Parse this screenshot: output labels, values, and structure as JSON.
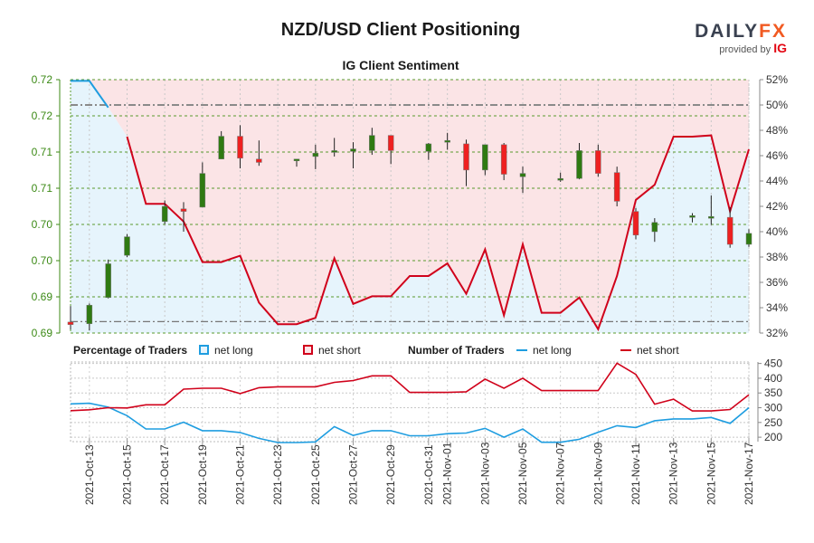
{
  "header": {
    "title": "NZD/USD Client Positioning",
    "subtitle": "IG Client Sentiment",
    "logo_main_left": "DAILY",
    "logo_main_right": "FX",
    "logo_sub": "provided by",
    "logo_ig": "IG"
  },
  "legend": {
    "percentage_title": "Percentage of Traders",
    "pct_long": "net long",
    "pct_short": "net short",
    "number_title": "Number of Traders",
    "num_long": "net long",
    "num_short": "net short"
  },
  "colors": {
    "net_long": "#1e9de0",
    "net_short": "#d0021b",
    "long_fill": "#e6f4fc",
    "short_fill": "#fbe4e6",
    "bull_candle": "#2f7a12",
    "bear_candle": "#ee2020",
    "price_axis": "#3c8a16",
    "pct_axis": "#333333"
  },
  "chart_data": [
    {
      "type": "line",
      "title": "IG Client Sentiment",
      "description": "Percentage of traders net long (boundary between net long area below and net short area above), overlaid with NZD/USD daily candles",
      "x": [
        "2021-10-12",
        "2021-10-13",
        "2021-10-14",
        "2021-10-15",
        "2021-10-16",
        "2021-10-17",
        "2021-10-18",
        "2021-10-19",
        "2021-10-20",
        "2021-10-21",
        "2021-10-22",
        "2021-10-23",
        "2021-10-24",
        "2021-10-25",
        "2021-10-26",
        "2021-10-27",
        "2021-10-28",
        "2021-10-29",
        "2021-10-30",
        "2021-10-31",
        "2021-11-01",
        "2021-11-02",
        "2021-11-03",
        "2021-11-04",
        "2021-11-05",
        "2021-11-06",
        "2021-11-07",
        "2021-11-08",
        "2021-11-09",
        "2021-11-10",
        "2021-11-11",
        "2021-11-12",
        "2021-11-13",
        "2021-11-14",
        "2021-11-15",
        "2021-11-16",
        "2021-11-17"
      ],
      "series": [
        {
          "name": "net long %",
          "values": [
            51.9,
            51.9,
            49.8,
            47.5,
            42.2,
            42.2,
            40.8,
            37.6,
            37.6,
            38.1,
            34.4,
            32.7,
            32.7,
            33.2,
            37.9,
            34.3,
            34.9,
            34.9,
            36.5,
            36.5,
            37.5,
            35.1,
            38.6,
            33.4,
            39.0,
            33.6,
            33.6,
            34.8,
            32.3,
            36.5,
            42.5,
            43.7,
            47.5,
            47.5,
            47.6,
            41.6,
            46.5
          ]
        }
      ],
      "reference_lines": {
        "upper_dashdot_pct": 50,
        "lower_dashdot_pct": 32.9
      },
      "right_axis": {
        "label": "",
        "ticks": [
          "32%",
          "34%",
          "36%",
          "38%",
          "40%",
          "42%",
          "44%",
          "46%",
          "48%",
          "50%",
          "52%"
        ],
        "ylim": [
          32,
          52
        ]
      },
      "left_axis": {
        "label": "",
        "ticks": [
          "0.69",
          "0.69",
          "0.70",
          "0.70",
          "0.71",
          "0.71",
          "0.72",
          "0.72"
        ],
        "ylim": [
          0.69,
          0.72
        ]
      },
      "candles": [
        {
          "date": "2021-10-12",
          "open": 0.6913,
          "close": 0.691,
          "high": 0.6932,
          "low": 0.6904
        },
        {
          "date": "2021-10-13",
          "open": 0.6911,
          "close": 0.6933,
          "high": 0.6935,
          "low": 0.6903
        },
        {
          "date": "2021-10-14",
          "open": 0.6942,
          "close": 0.6982,
          "high": 0.6987,
          "low": 0.6941
        },
        {
          "date": "2021-10-15",
          "open": 0.6992,
          "close": 0.7014,
          "high": 0.7017,
          "low": 0.699
        },
        {
          "date": "2021-10-17",
          "open": 0.7032,
          "close": 0.705,
          "high": 0.7057,
          "low": 0.7029
        },
        {
          "date": "2021-10-18",
          "open": 0.7047,
          "close": 0.7044,
          "high": 0.7055,
          "low": 0.702
        },
        {
          "date": "2021-10-19",
          "open": 0.7049,
          "close": 0.7089,
          "high": 0.7102,
          "low": 0.7049
        },
        {
          "date": "2021-10-20",
          "open": 0.7106,
          "close": 0.7133,
          "high": 0.7139,
          "low": 0.7106
        },
        {
          "date": "2021-10-21",
          "open": 0.7133,
          "close": 0.7107,
          "high": 0.7146,
          "low": 0.7095
        },
        {
          "date": "2021-10-22",
          "open": 0.7106,
          "close": 0.7102,
          "high": 0.7128,
          "low": 0.7098
        },
        {
          "date": "2021-10-24",
          "open": 0.7105,
          "close": 0.7106,
          "high": 0.7106,
          "low": 0.7097
        },
        {
          "date": "2021-10-25",
          "open": 0.7109,
          "close": 0.7113,
          "high": 0.7123,
          "low": 0.7094
        },
        {
          "date": "2021-10-26",
          "open": 0.7114,
          "close": 0.7116,
          "high": 0.7131,
          "low": 0.7109
        },
        {
          "date": "2021-10-27",
          "open": 0.7115,
          "close": 0.7118,
          "high": 0.7126,
          "low": 0.7095
        },
        {
          "date": "2021-10-28",
          "open": 0.7116,
          "close": 0.7134,
          "high": 0.7143,
          "low": 0.7111
        },
        {
          "date": "2021-10-29",
          "open": 0.7134,
          "close": 0.7116,
          "high": 0.7134,
          "low": 0.71
        },
        {
          "date": "2021-10-31",
          "open": 0.7115,
          "close": 0.7124,
          "high": 0.7125,
          "low": 0.7105
        },
        {
          "date": "2021-11-01",
          "open": 0.7126,
          "close": 0.7128,
          "high": 0.7137,
          "low": 0.7117
        },
        {
          "date": "2021-11-02",
          "open": 0.7124,
          "close": 0.7093,
          "high": 0.7129,
          "low": 0.7074
        },
        {
          "date": "2021-11-03",
          "open": 0.7093,
          "close": 0.7123,
          "high": 0.7123,
          "low": 0.7087
        },
        {
          "date": "2021-11-04",
          "open": 0.7123,
          "close": 0.7088,
          "high": 0.7125,
          "low": 0.7081
        },
        {
          "date": "2021-11-05",
          "open": 0.7085,
          "close": 0.7089,
          "high": 0.7097,
          "low": 0.7066
        },
        {
          "date": "2021-11-07",
          "open": 0.7082,
          "close": 0.7083,
          "high": 0.709,
          "low": 0.7079
        },
        {
          "date": "2021-11-08",
          "open": 0.7083,
          "close": 0.7116,
          "high": 0.7125,
          "low": 0.7082
        },
        {
          "date": "2021-11-09",
          "open": 0.7116,
          "close": 0.7089,
          "high": 0.7123,
          "low": 0.7085
        },
        {
          "date": "2021-11-10",
          "open": 0.709,
          "close": 0.7056,
          "high": 0.7097,
          "low": 0.705
        },
        {
          "date": "2021-11-11",
          "open": 0.7044,
          "close": 0.7016,
          "high": 0.7048,
          "low": 0.7011
        },
        {
          "date": "2021-11-12",
          "open": 0.702,
          "close": 0.7031,
          "high": 0.7036,
          "low": 0.7008
        },
        {
          "date": "2021-11-14",
          "open": 0.7037,
          "close": 0.7039,
          "high": 0.7042,
          "low": 0.7031
        },
        {
          "date": "2021-11-15",
          "open": 0.7038,
          "close": 0.7038,
          "high": 0.7063,
          "low": 0.7028
        },
        {
          "date": "2021-11-16",
          "open": 0.7037,
          "close": 0.7005,
          "high": 0.7049,
          "low": 0.7001
        },
        {
          "date": "2021-11-17",
          "open": 0.7005,
          "close": 0.7018,
          "high": 0.7023,
          "low": 0.7002
        }
      ],
      "grid": true
    },
    {
      "type": "line",
      "title": "Number of Traders",
      "x": [
        "2021-10-12",
        "2021-10-13",
        "2021-10-14",
        "2021-10-15",
        "2021-10-16",
        "2021-10-17",
        "2021-10-18",
        "2021-10-19",
        "2021-10-20",
        "2021-10-21",
        "2021-10-22",
        "2021-10-23",
        "2021-10-24",
        "2021-10-25",
        "2021-10-26",
        "2021-10-27",
        "2021-10-28",
        "2021-10-29",
        "2021-10-30",
        "2021-10-31",
        "2021-11-01",
        "2021-11-02",
        "2021-11-03",
        "2021-11-04",
        "2021-11-05",
        "2021-11-06",
        "2021-11-07",
        "2021-11-08",
        "2021-11-09",
        "2021-11-10",
        "2021-11-11",
        "2021-11-12",
        "2021-11-13",
        "2021-11-14",
        "2021-11-15",
        "2021-11-16",
        "2021-11-17"
      ],
      "series": [
        {
          "name": "net long",
          "values": [
            313,
            315,
            302,
            273,
            228,
            228,
            251,
            222,
            222,
            216,
            196,
            182,
            182,
            184,
            236,
            206,
            222,
            222,
            205,
            205,
            212,
            214,
            230,
            200,
            228,
            183,
            183,
            193,
            217,
            239,
            233,
            256,
            262,
            262,
            267,
            247,
            300
          ]
        },
        {
          "name": "net short",
          "values": [
            290,
            293,
            300,
            299,
            310,
            310,
            363,
            366,
            366,
            348,
            368,
            371,
            371,
            371,
            386,
            392,
            408,
            408,
            352,
            352,
            352,
            354,
            397,
            366,
            400,
            358,
            358,
            358,
            358,
            451,
            413,
            312,
            329,
            289,
            289,
            294,
            344
          ]
        }
      ],
      "ylim": [
        185,
        455
      ],
      "yticks": [
        200,
        250,
        300,
        350,
        400,
        450
      ],
      "xticks": [
        "2021-Oct-13",
        "2021-Oct-15",
        "2021-Oct-17",
        "2021-Oct-19",
        "2021-Oct-21",
        "2021-Oct-23",
        "2021-Oct-25",
        "2021-Oct-27",
        "2021-Oct-29",
        "2021-Oct-31",
        "2021-Nov-01",
        "2021-Nov-03",
        "2021-Nov-05",
        "2021-Nov-07",
        "2021-Nov-09",
        "2021-Nov-11",
        "2021-Nov-13",
        "2021-Nov-15",
        "2021-Nov-17"
      ],
      "grid": true
    }
  ]
}
